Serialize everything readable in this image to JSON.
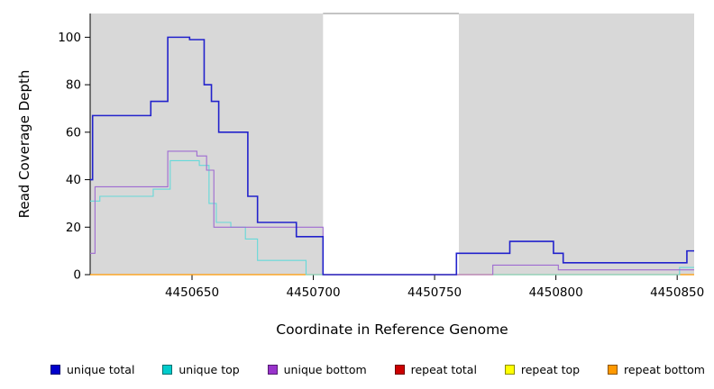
{
  "chart_data": {
    "type": "line",
    "subtype": "step-coverage-plot",
    "title": "",
    "xlabel": "Coordinate in Reference Genome",
    "ylabel": "Read Coverage Depth",
    "xlim": [
      4450608,
      4450857
    ],
    "ylim": [
      0,
      110
    ],
    "xticks": [
      4450650,
      4450700,
      4450750,
      4450800,
      4450850
    ],
    "yticks": [
      0,
      20,
      40,
      60,
      80,
      100
    ],
    "grid": false,
    "background_color": "#ffffff",
    "shaded_regions": [
      {
        "start": 4450608,
        "end": 4450704,
        "color": "#d8d8d8"
      },
      {
        "start": 4450760,
        "end": 4450857,
        "color": "#d8d8d8"
      }
    ],
    "gap_top_line": {
      "start": 4450704,
      "end": 4450760,
      "color": "#888888"
    },
    "series": [
      {
        "name": "repeat total",
        "color": "#CC0000",
        "width": 1.1,
        "step_points": [
          [
            4450608,
            0
          ]
        ]
      },
      {
        "name": "repeat top",
        "color": "#FFFF00",
        "width": 1.1,
        "step_points": [
          [
            4450608,
            0
          ]
        ]
      },
      {
        "name": "repeat bottom",
        "color": "#FF9900",
        "width": 1.2,
        "step_points": [
          [
            4450608,
            0
          ]
        ]
      },
      {
        "name": "unique top",
        "color": "#66D9D9",
        "width": 1.1,
        "step_points": [
          [
            4450608,
            31
          ],
          [
            4450612,
            33
          ],
          [
            4450634,
            36
          ],
          [
            4450641,
            48
          ],
          [
            4450653,
            46
          ],
          [
            4450657,
            30
          ],
          [
            4450660,
            22
          ],
          [
            4450666,
            20
          ],
          [
            4450672,
            15
          ],
          [
            4450677,
            6
          ],
          [
            4450697,
            0
          ],
          [
            4450851,
            3
          ]
        ]
      },
      {
        "name": "unique bottom",
        "color": "#9E6BD1",
        "width": 1.1,
        "step_points": [
          [
            4450608,
            9
          ],
          [
            4450610,
            37
          ],
          [
            4450640,
            52
          ],
          [
            4450652,
            50
          ],
          [
            4450656,
            44
          ],
          [
            4450659,
            20
          ],
          [
            4450704,
            0
          ],
          [
            4450774,
            4
          ],
          [
            4450801,
            2
          ]
        ]
      },
      {
        "name": "unique total",
        "color": "#2222CC",
        "width": 1.6,
        "step_points": [
          [
            4450608,
            40
          ],
          [
            4450609,
            67
          ],
          [
            4450633,
            73
          ],
          [
            4450640,
            100
          ],
          [
            4450649,
            99
          ],
          [
            4450655,
            80
          ],
          [
            4450658,
            73
          ],
          [
            4450661,
            60
          ],
          [
            4450673,
            33
          ],
          [
            4450677,
            22
          ],
          [
            4450693,
            16
          ],
          [
            4450704,
            0
          ],
          [
            4450759,
            9
          ],
          [
            4450781,
            14
          ],
          [
            4450799,
            9
          ],
          [
            4450803,
            5
          ],
          [
            4450854,
            10
          ]
        ]
      }
    ],
    "legend_position": "bottom",
    "legend": [
      {
        "label": "unique total",
        "color": "#0000CC"
      },
      {
        "label": "unique top",
        "color": "#00CCCC"
      },
      {
        "label": "unique bottom",
        "color": "#9933CC"
      },
      {
        "label": "repeat total",
        "color": "#CC0000"
      },
      {
        "label": "repeat top",
        "color": "#FFFF00"
      },
      {
        "label": "repeat bottom",
        "color": "#FF9900"
      }
    ]
  }
}
